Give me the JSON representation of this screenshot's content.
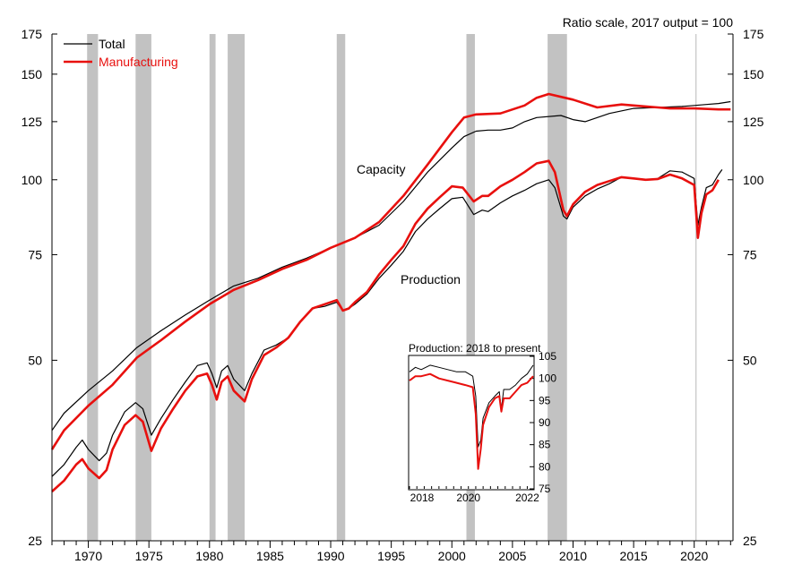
{
  "chart_data": {
    "type": "line",
    "scale": "log",
    "note": "Ratio scale, 2017 output = 100",
    "xlim": [
      1967,
      2023.2
    ],
    "ylim": [
      25,
      175
    ],
    "y_ticks": [
      25,
      50,
      75,
      100,
      125,
      150,
      175
    ],
    "x_ticks": [
      1970,
      1975,
      1980,
      1985,
      1990,
      1995,
      2000,
      2005,
      2010,
      2015,
      2020
    ],
    "recessions": [
      [
        1969.9,
        1970.8
      ],
      [
        1973.9,
        1975.2
      ],
      [
        1980.0,
        1980.5
      ],
      [
        1981.5,
        1982.9
      ],
      [
        1990.5,
        1991.2
      ],
      [
        2001.2,
        2001.9
      ],
      [
        2007.9,
        2009.5
      ]
    ],
    "vline": 2020.15,
    "legend": {
      "position": "top-left",
      "items": [
        {
          "label": "Total",
          "color": "#000000"
        },
        {
          "label": "Manufacturing",
          "color": "#e8100e"
        }
      ]
    },
    "annotations": [
      {
        "text": "Capacity",
        "x": 1996.5,
        "y": 104
      },
      {
        "text": "Production",
        "x": 1999,
        "y": 66
      }
    ],
    "series": [
      {
        "name": "Total capacity",
        "color": "#000000",
        "width": 1.2,
        "points": [
          [
            1967,
            38.2
          ],
          [
            1968,
            40.8
          ],
          [
            1970,
            44.5
          ],
          [
            1972,
            48
          ],
          [
            1974,
            52.5
          ],
          [
            1976,
            56
          ],
          [
            1978,
            59.5
          ],
          [
            1980,
            63
          ],
          [
            1982,
            66.5
          ],
          [
            1984,
            68.5
          ],
          [
            1986,
            71.5
          ],
          [
            1988,
            74
          ],
          [
            1990,
            77
          ],
          [
            1992,
            80
          ],
          [
            1994,
            84
          ],
          [
            1996,
            92
          ],
          [
            1998,
            103
          ],
          [
            2000,
            113
          ],
          [
            2001,
            118
          ],
          [
            2002,
            120.5
          ],
          [
            2003,
            121
          ],
          [
            2004,
            121
          ],
          [
            2005,
            122
          ],
          [
            2006,
            125
          ],
          [
            2007,
            127
          ],
          [
            2009,
            128
          ],
          [
            2010,
            126
          ],
          [
            2011,
            125
          ],
          [
            2013,
            129
          ],
          [
            2015,
            131.5
          ],
          [
            2017,
            132
          ],
          [
            2019,
            132.5
          ],
          [
            2020,
            133
          ],
          [
            2021,
            133.5
          ],
          [
            2022,
            134
          ],
          [
            2023,
            135
          ]
        ]
      },
      {
        "name": "Manufacturing capacity",
        "color": "#e8100e",
        "width": 2.6,
        "points": [
          [
            1967,
            35.5
          ],
          [
            1968,
            38.2
          ],
          [
            1970,
            42
          ],
          [
            1972,
            45.5
          ],
          [
            1974,
            50.5
          ],
          [
            1976,
            54
          ],
          [
            1978,
            58
          ],
          [
            1980,
            62
          ],
          [
            1982,
            65.5
          ],
          [
            1984,
            68
          ],
          [
            1986,
            71
          ],
          [
            1988,
            73.5
          ],
          [
            1990,
            77
          ],
          [
            1992,
            80
          ],
          [
            1994,
            85
          ],
          [
            1996,
            94
          ],
          [
            1998,
            106
          ],
          [
            2000,
            120
          ],
          [
            2001,
            127
          ],
          [
            2002,
            128.5
          ],
          [
            2004,
            129
          ],
          [
            2006,
            133
          ],
          [
            2007,
            137
          ],
          [
            2008,
            139
          ],
          [
            2010,
            136
          ],
          [
            2012,
            132
          ],
          [
            2014,
            133.5
          ],
          [
            2016,
            132.5
          ],
          [
            2017,
            132
          ],
          [
            2018,
            131.5
          ],
          [
            2019,
            131.5
          ],
          [
            2020,
            131.5
          ],
          [
            2022,
            131
          ],
          [
            2023,
            131
          ]
        ]
      },
      {
        "name": "Total production",
        "color": "#000000",
        "width": 1.2,
        "points": [
          [
            1967,
            32
          ],
          [
            1968,
            33.5
          ],
          [
            1969,
            35.8
          ],
          [
            1969.5,
            36.8
          ],
          [
            1970,
            35.5
          ],
          [
            1970.9,
            34
          ],
          [
            1971.5,
            35
          ],
          [
            1972,
            37.5
          ],
          [
            1973,
            41
          ],
          [
            1973.9,
            42.5
          ],
          [
            1974.5,
            41.5
          ],
          [
            1975.2,
            37.5
          ],
          [
            1976,
            40
          ],
          [
            1977,
            43
          ],
          [
            1978,
            46
          ],
          [
            1979,
            49
          ],
          [
            1979.8,
            49.5
          ],
          [
            1980.2,
            47.5
          ],
          [
            1980.6,
            45
          ],
          [
            1981,
            48
          ],
          [
            1981.5,
            49
          ],
          [
            1982,
            46.5
          ],
          [
            1982.9,
            44.5
          ],
          [
            1983.5,
            47.5
          ],
          [
            1984.5,
            52
          ],
          [
            1985.5,
            53
          ],
          [
            1986.5,
            54.5
          ],
          [
            1987.5,
            58
          ],
          [
            1988.5,
            61
          ],
          [
            1989.5,
            61.5
          ],
          [
            1990.5,
            62.5
          ],
          [
            1991,
            60.5
          ],
          [
            1991.5,
            61
          ],
          [
            1992,
            62
          ],
          [
            1993,
            64.5
          ],
          [
            1994,
            68.5
          ],
          [
            1995,
            72
          ],
          [
            1996,
            76
          ],
          [
            1997,
            82
          ],
          [
            1998,
            86
          ],
          [
            1999,
            89.5
          ],
          [
            2000,
            93
          ],
          [
            2000.9,
            93.5
          ],
          [
            2001.8,
            87.5
          ],
          [
            2002.5,
            89
          ],
          [
            2003,
            88.5
          ],
          [
            2004,
            91.5
          ],
          [
            2005,
            94
          ],
          [
            2006,
            96
          ],
          [
            2007,
            98.5
          ],
          [
            2008,
            100
          ],
          [
            2008.5,
            97
          ],
          [
            2009.2,
            87
          ],
          [
            2009.5,
            86
          ],
          [
            2010,
            90
          ],
          [
            2011,
            94
          ],
          [
            2012,
            96.5
          ],
          [
            2013,
            98.5
          ],
          [
            2014,
            101
          ],
          [
            2015,
            100.5
          ],
          [
            2016,
            100
          ],
          [
            2017,
            100.5
          ],
          [
            2018,
            103.5
          ],
          [
            2019,
            103
          ],
          [
            2020,
            100.5
          ],
          [
            2020.3,
            84
          ],
          [
            2020.6,
            90
          ],
          [
            2021,
            97
          ],
          [
            2021.5,
            98
          ],
          [
            2022,
            102
          ],
          [
            2022.3,
            104
          ]
        ]
      },
      {
        "name": "Manufacturing production",
        "color": "#e8100e",
        "width": 2.6,
        "points": [
          [
            1967,
            30.2
          ],
          [
            1968,
            31.5
          ],
          [
            1969,
            33.5
          ],
          [
            1969.5,
            34.2
          ],
          [
            1970,
            33
          ],
          [
            1970.9,
            31.8
          ],
          [
            1971.5,
            32.8
          ],
          [
            1972,
            35.5
          ],
          [
            1973,
            39
          ],
          [
            1973.9,
            40.5
          ],
          [
            1974.5,
            39.5
          ],
          [
            1975.2,
            35.3
          ],
          [
            1976,
            38.5
          ],
          [
            1977,
            41.5
          ],
          [
            1978,
            44.5
          ],
          [
            1979,
            47
          ],
          [
            1979.8,
            47.5
          ],
          [
            1980.2,
            45.5
          ],
          [
            1980.6,
            43
          ],
          [
            1981,
            46
          ],
          [
            1981.5,
            47
          ],
          [
            1982,
            44.5
          ],
          [
            1982.9,
            42.7
          ],
          [
            1983.5,
            46.5
          ],
          [
            1984.5,
            51
          ],
          [
            1985.5,
            52.5
          ],
          [
            1986.5,
            54.5
          ],
          [
            1987.5,
            58
          ],
          [
            1988.5,
            61
          ],
          [
            1989.5,
            62
          ],
          [
            1990.5,
            63
          ],
          [
            1991,
            60.5
          ],
          [
            1991.5,
            61
          ],
          [
            1992,
            62.5
          ],
          [
            1993,
            65
          ],
          [
            1994,
            69.5
          ],
          [
            1995,
            73.5
          ],
          [
            1996,
            77.5
          ],
          [
            1997,
            84.5
          ],
          [
            1998,
            89.5
          ],
          [
            1999,
            93.5
          ],
          [
            2000,
            97.5
          ],
          [
            2000.9,
            97
          ],
          [
            2001.8,
            92
          ],
          [
            2002.5,
            94
          ],
          [
            2003,
            94
          ],
          [
            2004,
            97.5
          ],
          [
            2005,
            100
          ],
          [
            2006,
            103
          ],
          [
            2007,
            106.5
          ],
          [
            2008,
            107.5
          ],
          [
            2008.5,
            103
          ],
          [
            2009.2,
            89
          ],
          [
            2009.5,
            87
          ],
          [
            2010,
            91
          ],
          [
            2011,
            95.5
          ],
          [
            2012,
            98
          ],
          [
            2013,
            99.5
          ],
          [
            2014,
            101
          ],
          [
            2015,
            100.5
          ],
          [
            2016,
            100
          ],
          [
            2017,
            100.3
          ],
          [
            2018,
            102
          ],
          [
            2019,
            100.5
          ],
          [
            2020,
            98
          ],
          [
            2020.3,
            80
          ],
          [
            2020.6,
            88
          ],
          [
            2021,
            94.5
          ],
          [
            2021.5,
            96
          ],
          [
            2022,
            100
          ]
        ]
      }
    ],
    "inset": {
      "title": "Production: 2018 to present",
      "xlim": [
        2018,
        2022.2
      ],
      "ylim": [
        75,
        105
      ],
      "y_ticks": [
        75,
        80,
        85,
        90,
        95,
        100,
        105
      ],
      "x_ticks": [
        2018,
        2020,
        2022
      ],
      "series": [
        {
          "name": "Total",
          "color": "#000000",
          "width": 1,
          "points": [
            [
              2018,
              101.5
            ],
            [
              2018.2,
              102.5
            ],
            [
              2018.4,
              102
            ],
            [
              2018.7,
              103
            ],
            [
              2019,
              102.5
            ],
            [
              2019.3,
              102
            ],
            [
              2019.6,
              101.5
            ],
            [
              2019.9,
              101.5
            ],
            [
              2020.15,
              100.5
            ],
            [
              2020.25,
              96
            ],
            [
              2020.33,
              84.5
            ],
            [
              2020.42,
              86
            ],
            [
              2020.5,
              91
            ],
            [
              2020.7,
              94.5
            ],
            [
              2020.9,
              96
            ],
            [
              2021.05,
              97
            ],
            [
              2021.12,
              93
            ],
            [
              2021.2,
              97.5
            ],
            [
              2021.4,
              97.5
            ],
            [
              2021.6,
              98.5
            ],
            [
              2021.8,
              100
            ],
            [
              2022,
              101
            ],
            [
              2022.2,
              103
            ]
          ]
        },
        {
          "name": "Manufacturing",
          "color": "#e8100e",
          "width": 2,
          "points": [
            [
              2018,
              99.5
            ],
            [
              2018.2,
              100.5
            ],
            [
              2018.4,
              100.5
            ],
            [
              2018.7,
              101
            ],
            [
              2019,
              100
            ],
            [
              2019.3,
              99.5
            ],
            [
              2019.6,
              99
            ],
            [
              2019.9,
              98.5
            ],
            [
              2020.15,
              98
            ],
            [
              2020.25,
              92
            ],
            [
              2020.33,
              79.5
            ],
            [
              2020.42,
              84
            ],
            [
              2020.5,
              89.5
            ],
            [
              2020.7,
              93.5
            ],
            [
              2020.9,
              95.5
            ],
            [
              2021.05,
              96
            ],
            [
              2021.12,
              92.5
            ],
            [
              2021.2,
              95.5
            ],
            [
              2021.4,
              95.5
            ],
            [
              2021.6,
              97
            ],
            [
              2021.8,
              98.5
            ],
            [
              2022,
              99
            ],
            [
              2022.2,
              100.5
            ]
          ]
        }
      ]
    }
  }
}
